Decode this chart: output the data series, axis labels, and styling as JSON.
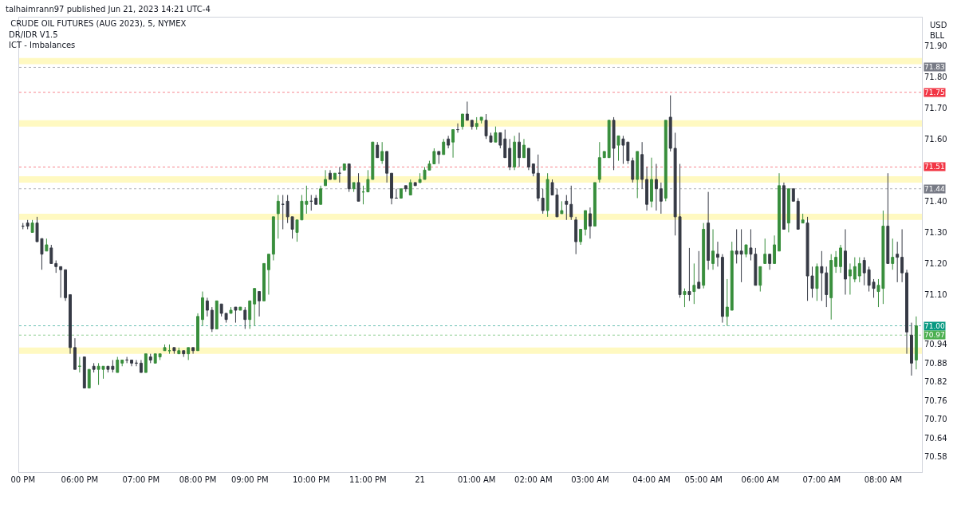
{
  "chart_data": {
    "type": "candlestick",
    "title": "CRUDE OIL FUTURES (AUG 2023), 5, NYMEX",
    "annotations": [
      "talhaimrann97 published Jun 21, 2023 14:21 UTC-4",
      "DR/IDR V1.5",
      "ICT - Imbalances",
      "USD",
      "BLL"
    ],
    "categories": [
      "00 PM",
      null,
      null,
      null,
      null,
      null,
      null,
      null,
      null,
      null,
      null,
      null,
      "06:00 PM",
      null,
      null,
      null,
      null,
      null,
      null,
      null,
      null,
      null,
      null,
      null,
      null,
      "07:00 PM",
      null,
      null,
      null,
      null,
      null,
      null,
      null,
      null,
      null,
      null,
      null,
      "08:00 PM",
      null,
      null,
      null,
      null,
      null,
      null,
      null,
      null,
      null,
      null,
      "09:00 PM",
      null,
      null,
      null,
      null,
      null,
      null,
      null,
      null,
      null,
      null,
      null,
      null,
      "10:00 PM",
      null,
      null,
      null,
      null,
      null,
      null,
      null,
      null,
      null,
      null,
      null,
      "11:00 PM",
      null,
      null,
      null,
      null,
      null,
      null,
      null,
      null,
      null,
      null,
      "21",
      null,
      null,
      null,
      null,
      null,
      null,
      null,
      null,
      null,
      null,
      null,
      "01:00 AM",
      null,
      null,
      null,
      null,
      null,
      null,
      null,
      null,
      null,
      null,
      null,
      "02:00 AM",
      null,
      null,
      null,
      null,
      null,
      null,
      null,
      null,
      null,
      null,
      null,
      "03:00 AM",
      null,
      null,
      null,
      null,
      null,
      null,
      null,
      null,
      null,
      null,
      null,
      null,
      "04:00 AM",
      null,
      null,
      null,
      null,
      null,
      null,
      null,
      null,
      null,
      null,
      "05:00 AM",
      null,
      null,
      null,
      null,
      null,
      null,
      null,
      null,
      null,
      null,
      null,
      "06:00 AM",
      null,
      null,
      null,
      null,
      null,
      null,
      null,
      null,
      null,
      null,
      null,
      null,
      "07:00 AM",
      null,
      null,
      null,
      null,
      null,
      null,
      null,
      null,
      null,
      null,
      null,
      null,
      "08:00 AM",
      null,
      null,
      null,
      null,
      null,
      null,
      null
    ],
    "ohlc": [
      [
        71.32,
        71.33,
        71.31,
        71.32
      ],
      [
        71.33,
        71.34,
        71.31,
        71.32
      ],
      [
        71.3,
        71.34,
        71.3,
        71.33
      ],
      [
        71.33,
        71.35,
        71.27,
        71.27
      ],
      [
        71.28,
        71.28,
        71.18,
        71.23
      ],
      [
        71.24,
        71.28,
        71.24,
        71.26
      ],
      [
        71.25,
        71.26,
        71.2,
        71.2
      ],
      [
        71.2,
        71.21,
        71.17,
        71.19
      ],
      [
        71.19,
        71.19,
        71.09,
        71.18
      ],
      [
        71.18,
        71.18,
        71.08,
        71.09
      ],
      [
        71.1,
        71.1,
        70.91,
        70.93
      ],
      [
        70.93,
        70.96,
        70.86,
        70.86
      ],
      [
        70.87,
        70.9,
        70.85,
        70.87
      ],
      [
        70.9,
        70.9,
        70.8,
        70.8
      ],
      [
        70.8,
        70.86,
        70.8,
        70.86
      ],
      [
        70.87,
        70.88,
        70.85,
        70.86
      ],
      [
        70.86,
        70.88,
        70.81,
        70.87
      ],
      [
        70.86,
        70.87,
        70.83,
        70.87
      ],
      [
        70.87,
        70.87,
        70.85,
        70.86
      ],
      [
        70.87,
        70.89,
        70.85,
        70.86
      ],
      [
        70.85,
        70.9,
        70.85,
        70.89
      ],
      [
        70.88,
        70.89,
        70.87,
        70.89
      ],
      [
        70.89,
        70.9,
        70.88,
        70.89
      ],
      [
        70.89,
        70.89,
        70.87,
        70.88
      ],
      [
        70.88,
        70.89,
        70.87,
        70.88
      ],
      [
        70.88,
        70.89,
        70.85,
        70.85
      ],
      [
        70.85,
        70.91,
        70.85,
        70.91
      ],
      [
        70.9,
        70.91,
        70.88,
        70.89
      ],
      [
        70.88,
        70.91,
        70.88,
        70.91
      ],
      [
        70.9,
        70.91,
        70.89,
        70.91
      ],
      [
        70.92,
        70.94,
        70.92,
        70.93
      ],
      [
        70.92,
        70.94,
        70.91,
        70.92
      ],
      [
        70.93,
        70.93,
        70.91,
        70.92
      ],
      [
        70.91,
        70.93,
        70.91,
        70.92
      ],
      [
        70.92,
        70.92,
        70.9,
        70.91
      ],
      [
        70.91,
        70.93,
        70.89,
        70.93
      ],
      [
        70.93,
        70.93,
        70.91,
        70.92
      ],
      [
        70.92,
        71.04,
        70.92,
        71.03
      ],
      [
        71.02,
        71.11,
        71.0,
        71.09
      ],
      [
        71.08,
        71.09,
        71.03,
        71.05
      ],
      [
        71.05,
        71.06,
        70.98,
        70.99
      ],
      [
        70.99,
        71.08,
        70.99,
        71.08
      ],
      [
        71.07,
        71.07,
        71.03,
        71.04
      ],
      [
        71.04,
        71.04,
        71.01,
        71.02
      ],
      [
        71.04,
        71.06,
        71.04,
        71.05
      ],
      [
        71.06,
        71.06,
        71.01,
        71.05
      ],
      [
        71.05,
        71.06,
        71.05,
        71.06
      ],
      [
        71.05,
        71.06,
        70.99,
        71.02
      ],
      [
        71.02,
        71.08,
        70.99,
        71.08
      ],
      [
        71.07,
        71.12,
        71.0,
        71.12
      ],
      [
        71.11,
        71.11,
        71.03,
        71.08
      ],
      [
        71.08,
        71.2,
        71.08,
        71.2
      ],
      [
        71.18,
        71.23,
        71.1,
        71.23
      ],
      [
        71.23,
        71.35,
        71.21,
        71.35
      ],
      [
        71.36,
        71.42,
        71.28,
        71.4
      ],
      [
        71.39,
        71.42,
        71.31,
        71.39
      ],
      [
        71.4,
        71.42,
        71.33,
        71.35
      ],
      [
        71.35,
        71.35,
        71.28,
        71.31
      ],
      [
        71.3,
        71.34,
        71.27,
        71.34
      ],
      [
        71.34,
        71.42,
        71.34,
        71.4
      ],
      [
        71.39,
        71.45,
        71.36,
        71.4
      ],
      [
        71.4,
        71.42,
        71.37,
        71.4
      ],
      [
        71.41,
        71.42,
        71.39,
        71.39
      ],
      [
        71.39,
        71.45,
        71.39,
        71.44
      ],
      [
        71.45,
        71.5,
        71.45,
        71.47
      ],
      [
        71.49,
        71.5,
        71.47,
        71.47
      ],
      [
        71.47,
        71.49,
        71.47,
        71.49
      ],
      [
        71.49,
        71.51,
        71.46,
        71.49
      ],
      [
        71.5,
        71.52,
        71.5,
        71.52
      ],
      [
        71.52,
        71.52,
        71.43,
        71.44
      ],
      [
        71.44,
        71.46,
        71.43,
        71.46
      ],
      [
        71.46,
        71.49,
        71.4,
        71.4
      ],
      [
        71.43,
        71.45,
        71.39,
        71.43
      ],
      [
        71.43,
        71.5,
        71.43,
        71.47
      ],
      [
        71.47,
        71.59,
        71.47,
        71.59
      ],
      [
        71.58,
        71.59,
        71.54,
        71.54
      ],
      [
        71.53,
        71.59,
        71.52,
        71.56
      ],
      [
        71.56,
        71.56,
        71.46,
        71.49
      ],
      [
        71.49,
        71.49,
        71.39,
        71.41
      ],
      [
        71.41,
        71.44,
        71.41,
        71.41
      ],
      [
        71.41,
        71.44,
        71.41,
        71.44
      ],
      [
        71.45,
        71.45,
        71.43,
        71.44
      ],
      [
        71.42,
        71.47,
        71.42,
        71.46
      ],
      [
        71.46,
        71.46,
        71.45,
        71.45
      ],
      [
        71.46,
        71.49,
        71.46,
        71.47
      ],
      [
        71.47,
        71.51,
        71.47,
        71.5
      ],
      [
        71.5,
        71.53,
        71.5,
        71.52
      ],
      [
        71.52,
        71.57,
        71.52,
        71.56
      ],
      [
        71.56,
        71.56,
        71.52,
        71.55
      ],
      [
        71.55,
        71.6,
        71.55,
        71.59
      ],
      [
        71.6,
        71.61,
        71.57,
        71.58
      ],
      [
        71.59,
        71.63,
        71.54,
        71.63
      ],
      [
        71.63,
        71.65,
        71.62,
        71.63
      ],
      [
        71.64,
        71.68,
        71.63,
        71.68
      ],
      [
        71.68,
        71.72,
        71.66,
        71.66
      ],
      [
        71.66,
        71.66,
        71.63,
        71.64
      ],
      [
        71.64,
        71.67,
        71.63,
        71.65
      ],
      [
        71.66,
        71.67,
        71.65,
        71.67
      ],
      [
        71.66,
        71.68,
        71.6,
        71.61
      ],
      [
        71.61,
        71.62,
        71.59,
        71.59
      ],
      [
        71.59,
        71.64,
        71.59,
        71.62
      ],
      [
        71.62,
        71.62,
        71.57,
        71.58
      ],
      [
        71.6,
        71.63,
        71.54,
        71.54
      ],
      [
        71.57,
        71.6,
        71.5,
        71.51
      ],
      [
        71.51,
        71.61,
        71.5,
        71.59
      ],
      [
        71.59,
        71.62,
        71.51,
        71.54
      ],
      [
        71.54,
        71.6,
        71.54,
        71.58
      ],
      [
        71.57,
        71.57,
        71.5,
        71.51
      ],
      [
        71.52,
        71.52,
        71.48,
        71.49
      ],
      [
        71.49,
        71.55,
        71.4,
        71.41
      ],
      [
        71.41,
        71.44,
        71.36,
        71.37
      ],
      [
        71.37,
        71.49,
        71.35,
        71.47
      ],
      [
        71.46,
        71.47,
        71.42,
        71.42
      ],
      [
        71.42,
        71.44,
        71.35,
        71.35
      ],
      [
        71.36,
        71.4,
        71.36,
        71.37
      ],
      [
        71.4,
        71.42,
        71.34,
        71.39
      ],
      [
        71.39,
        71.45,
        71.34,
        71.35
      ],
      [
        71.34,
        71.35,
        71.23,
        71.27
      ],
      [
        71.27,
        71.31,
        71.26,
        71.31
      ],
      [
        71.31,
        71.37,
        71.29,
        71.37
      ],
      [
        71.36,
        71.38,
        71.28,
        71.32
      ],
      [
        71.32,
        71.46,
        71.32,
        71.46
      ],
      [
        71.47,
        71.59,
        71.46,
        71.54
      ],
      [
        71.54,
        71.56,
        71.54,
        71.56
      ],
      [
        71.54,
        71.66,
        71.54,
        71.66
      ],
      [
        71.66,
        71.67,
        71.5,
        71.57
      ],
      [
        71.58,
        71.61,
        71.53,
        71.61
      ],
      [
        71.6,
        71.61,
        71.52,
        71.58
      ],
      [
        71.59,
        71.59,
        71.52,
        71.53
      ],
      [
        71.53,
        71.54,
        71.46,
        71.47
      ],
      [
        71.47,
        71.56,
        71.41,
        71.56
      ],
      [
        71.55,
        71.59,
        71.44,
        71.47
      ],
      [
        71.47,
        71.51,
        71.37,
        71.39
      ],
      [
        71.4,
        71.54,
        71.38,
        71.47
      ],
      [
        71.47,
        71.52,
        71.37,
        71.44
      ],
      [
        71.44,
        71.46,
        71.36,
        71.4
      ],
      [
        71.41,
        71.66,
        71.4,
        71.66
      ],
      [
        71.67,
        71.74,
        71.56,
        71.57
      ],
      [
        71.57,
        71.62,
        71.29,
        71.35
      ],
      [
        71.35,
        71.52,
        71.09,
        71.1
      ],
      [
        71.1,
        71.12,
        71.06,
        71.11
      ],
      [
        71.11,
        71.25,
        71.08,
        71.1
      ],
      [
        71.11,
        71.2,
        71.07,
        71.13
      ],
      [
        71.14,
        71.24,
        71.12,
        71.12
      ],
      [
        71.13,
        71.33,
        71.12,
        71.31
      ],
      [
        71.33,
        71.43,
        71.18,
        71.21
      ],
      [
        71.2,
        71.31,
        71.18,
        71.24
      ],
      [
        71.23,
        71.27,
        71.19,
        71.22
      ],
      [
        71.22,
        71.23,
        71.01,
        71.03
      ],
      [
        71.03,
        71.15,
        71.0,
        71.06
      ],
      [
        71.05,
        71.27,
        71.05,
        71.24
      ],
      [
        71.24,
        71.31,
        71.2,
        71.23
      ],
      [
        71.24,
        71.31,
        71.14,
        71.23
      ],
      [
        71.23,
        71.26,
        71.22,
        71.26
      ],
      [
        71.25,
        71.31,
        71.21,
        71.23
      ],
      [
        71.23,
        71.25,
        71.13,
        71.13
      ],
      [
        71.13,
        71.19,
        71.11,
        71.19
      ],
      [
        71.2,
        71.28,
        71.2,
        71.23
      ],
      [
        71.23,
        71.23,
        71.18,
        71.2
      ],
      [
        71.2,
        71.29,
        71.2,
        71.26
      ],
      [
        71.24,
        71.49,
        71.24,
        71.45
      ],
      [
        71.45,
        71.46,
        71.31,
        71.31
      ],
      [
        71.33,
        71.44,
        71.3,
        71.44
      ],
      [
        71.44,
        71.44,
        71.4,
        71.4
      ],
      [
        71.4,
        71.41,
        71.31,
        71.31
      ],
      [
        71.33,
        71.36,
        71.33,
        71.34
      ],
      [
        71.33,
        71.35,
        71.08,
        71.16
      ],
      [
        71.16,
        71.19,
        71.09,
        71.12
      ],
      [
        71.12,
        71.2,
        71.08,
        71.19
      ],
      [
        71.19,
        71.24,
        71.08,
        71.17
      ],
      [
        71.17,
        71.19,
        71.06,
        71.1
      ],
      [
        71.09,
        71.23,
        71.02,
        71.21
      ],
      [
        71.19,
        71.24,
        71.17,
        71.22
      ],
      [
        71.19,
        71.26,
        71.17,
        71.25
      ],
      [
        71.24,
        71.31,
        71.1,
        71.15
      ],
      [
        71.16,
        71.2,
        71.1,
        71.18
      ],
      [
        71.15,
        71.22,
        71.14,
        71.19
      ],
      [
        71.16,
        71.22,
        71.14,
        71.2
      ],
      [
        71.21,
        71.22,
        71.13,
        71.17
      ],
      [
        71.18,
        71.19,
        71.11,
        71.13
      ],
      [
        71.14,
        71.15,
        71.09,
        71.12
      ],
      [
        71.11,
        71.15,
        71.06,
        71.13
      ],
      [
        71.12,
        71.37,
        71.07,
        71.32
      ],
      [
        71.32,
        71.49,
        71.2,
        71.2
      ],
      [
        71.2,
        71.28,
        71.18,
        71.22
      ],
      [
        71.23,
        71.27,
        71.14,
        71.22
      ],
      [
        71.22,
        71.31,
        71.14,
        71.17
      ],
      [
        71.17,
        71.18,
        70.91,
        70.98
      ],
      [
        70.97,
        71.01,
        70.84,
        70.88
      ],
      [
        70.89,
        71.03,
        70.86,
        71.0
      ]
    ],
    "colors": [
      "#363a45",
      "#363a45",
      "#388e3c",
      "#363a45",
      "#363a45",
      "#388e3c",
      "#363a45",
      "#363a45",
      "#363a45",
      "#363a45",
      "#363a45",
      "#363a45",
      "#388e3c",
      "#363a45",
      "#388e3c",
      "#363a45",
      "#388e3c",
      "#388e3c",
      "#363a45",
      "#363a45",
      "#388e3c",
      "#388e3c",
      "#363a45",
      "#363a45",
      "#363a45",
      "#363a45",
      "#388e3c",
      "#363a45",
      "#388e3c",
      "#388e3c",
      "#388e3c",
      "#388e3c",
      "#363a45",
      "#388e3c",
      "#363a45",
      "#388e3c",
      "#363a45",
      "#388e3c",
      "#388e3c",
      "#363a45",
      "#363a45",
      "#388e3c",
      "#363a45",
      "#363a45",
      "#388e3c",
      "#363a45",
      "#388e3c",
      "#363a45",
      "#388e3c",
      "#388e3c",
      "#363a45",
      "#388e3c",
      "#388e3c",
      "#388e3c",
      "#388e3c",
      "#363a45",
      "#363a45",
      "#363a45",
      "#388e3c",
      "#388e3c",
      "#388e3c",
      "#363a45",
      "#363a45",
      "#388e3c",
      "#388e3c",
      "#363a45",
      "#388e3c",
      "#363a45",
      "#388e3c",
      "#363a45",
      "#388e3c",
      "#363a45",
      "#388e3c",
      "#388e3c",
      "#388e3c",
      "#363a45",
      "#388e3c",
      "#363a45",
      "#363a45",
      "#363a45",
      "#388e3c",
      "#363a45",
      "#388e3c",
      "#363a45",
      "#388e3c",
      "#388e3c",
      "#388e3c",
      "#388e3c",
      "#363a45",
      "#388e3c",
      "#363a45",
      "#388e3c",
      "#363a45",
      "#388e3c",
      "#363a45",
      "#363a45",
      "#388e3c",
      "#388e3c",
      "#363a45",
      "#363a45",
      "#388e3c",
      "#363a45",
      "#363a45",
      "#363a45",
      "#388e3c",
      "#363a45",
      "#388e3c",
      "#363a45",
      "#363a45",
      "#363a45",
      "#363a45",
      "#388e3c",
      "#363a45",
      "#363a45",
      "#388e3c",
      "#363a45",
      "#363a45",
      "#363a45",
      "#388e3c",
      "#388e3c",
      "#363a45",
      "#388e3c",
      "#388e3c",
      "#388e3c",
      "#388e3c",
      "#363a45",
      "#388e3c",
      "#363a45",
      "#363a45",
      "#363a45",
      "#388e3c",
      "#363a45",
      "#363a45",
      "#388e3c",
      "#363a45",
      "#363a45",
      "#388e3c",
      "#363a45",
      "#363a45",
      "#363a45",
      "#388e3c",
      "#363a45",
      "#388e3c",
      "#363a45",
      "#388e3c",
      "#363a45",
      "#388e3c",
      "#363a45",
      "#363a45",
      "#388e3c",
      "#388e3c",
      "#363a45",
      "#363a45",
      "#388e3c",
      "#363a45",
      "#363a45",
      "#388e3c",
      "#388e3c",
      "#363a45",
      "#388e3c",
      "#388e3c",
      "#363a45",
      "#388e3c",
      "#363a45",
      "#363a45",
      "#388e3c",
      "#363a45",
      "#363a45",
      "#388e3c",
      "#363a45",
      "#363a45",
      "#388e3c",
      "#388e3c",
      "#388e3c",
      "#363a45",
      "#388e3c",
      "#388e3c",
      "#388e3c",
      "#363a45",
      "#363a45",
      "#363a45",
      "#388e3c",
      "#388e3c",
      "#363a45",
      "#388e3c",
      "#363a45",
      "#363a45",
      "#363a45",
      "#363a45",
      "#388e3c"
    ],
    "ylim": [
      70.53,
      71.99
    ],
    "yticks": [
      {
        "value": 71.9,
        "label": "71.90"
      },
      {
        "value": 71.8,
        "label": "71.80"
      },
      {
        "value": 71.7,
        "label": "71.70"
      },
      {
        "value": 71.6,
        "label": "71.60"
      },
      {
        "value": 71.4,
        "label": "71.40"
      },
      {
        "value": 71.3,
        "label": "71.30"
      },
      {
        "value": 71.2,
        "label": "71.20"
      },
      {
        "value": 71.1,
        "label": "71.10"
      },
      70.94,
      70.88,
      70.82,
      70.76,
      {
        "value": 70.7,
        "label": "70.70"
      },
      70.64,
      70.58
    ],
    "bands": [
      {
        "axis": "y",
        "from": 71.84,
        "to": 71.86,
        "color": "#fff176"
      },
      {
        "axis": "y",
        "from": 71.64,
        "to": 71.66,
        "color": "#fff176"
      },
      {
        "axis": "y",
        "from": 71.46,
        "to": 71.48,
        "color": "#fff176"
      },
      {
        "axis": "y",
        "from": 71.34,
        "to": 71.36,
        "color": "#fff176"
      },
      {
        "axis": "y",
        "from": 70.91,
        "to": 70.93,
        "color": "#fff176"
      }
    ],
    "ref_lines": [
      {
        "axis": "y",
        "value": 71.83,
        "label": "71.83",
        "color": "#787b86"
      },
      {
        "axis": "y",
        "value": 71.75,
        "label": "71.75",
        "color": "#f23645"
      },
      {
        "axis": "y",
        "value": 71.51,
        "label": "71.51",
        "color": "#f23645"
      },
      {
        "axis": "y",
        "value": 71.44,
        "label": "71.44",
        "color": "#787b86"
      },
      {
        "axis": "y",
        "value": 71.0,
        "label": "71.00",
        "color": "#089981"
      },
      {
        "axis": "y",
        "value": 70.97,
        "label": "70.97",
        "color": "#4caf50"
      }
    ]
  }
}
